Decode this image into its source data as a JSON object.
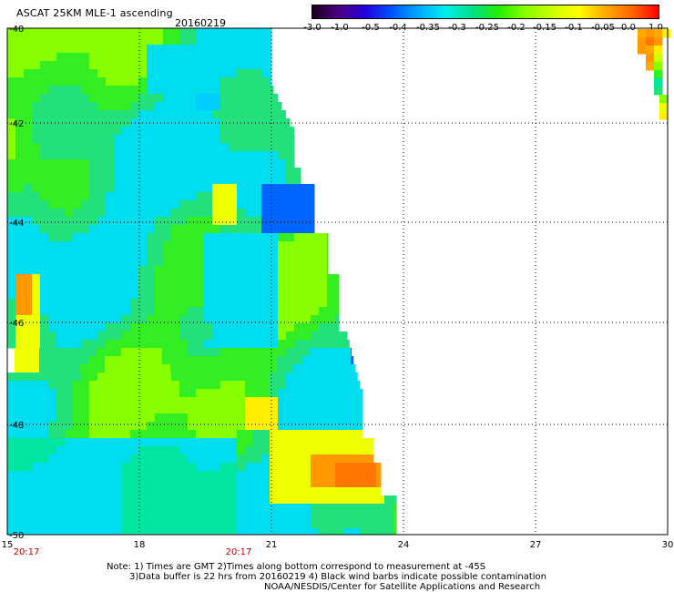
{
  "header": {
    "title": "ASCAT 25KM MLE-1 ascending",
    "date": "20160219"
  },
  "colorbar": {
    "colors": [
      "#1a001a",
      "#4b0082",
      "#2200dd",
      "#0055ff",
      "#00aaff",
      "#00eeee",
      "#00e08a",
      "#22ee00",
      "#88ff00",
      "#ccff00",
      "#ffff00",
      "#ffaa00",
      "#ff6600",
      "#ff0000"
    ],
    "labels": [
      "-3.0",
      "-1.0",
      "-0.5",
      "-0.4",
      "-0.35",
      "-0.3",
      "-0.25",
      "-0.2",
      "-0.15",
      "-0.1",
      "-0.05",
      "0.0",
      "1.0"
    ]
  },
  "map": {
    "lat_labels": [
      "-40",
      "-42",
      "-44",
      "-46",
      "-48",
      "-50"
    ],
    "lon_labels": [
      "15",
      "18",
      "21",
      "24",
      "27",
      "30"
    ],
    "time_labels": [
      "20:17",
      "20:17"
    ]
  },
  "footer": {
    "note_line1": "Note: 1) Times are GMT 2)Times along bottom correspond to measurement at -45S",
    "note_line2": "3)Data buffer is 22 hrs from 20160219 4) Black wind barbs indicate possible contamination",
    "credit": "NOAA/NESDIS/Center for Satellite Applications and Research"
  }
}
